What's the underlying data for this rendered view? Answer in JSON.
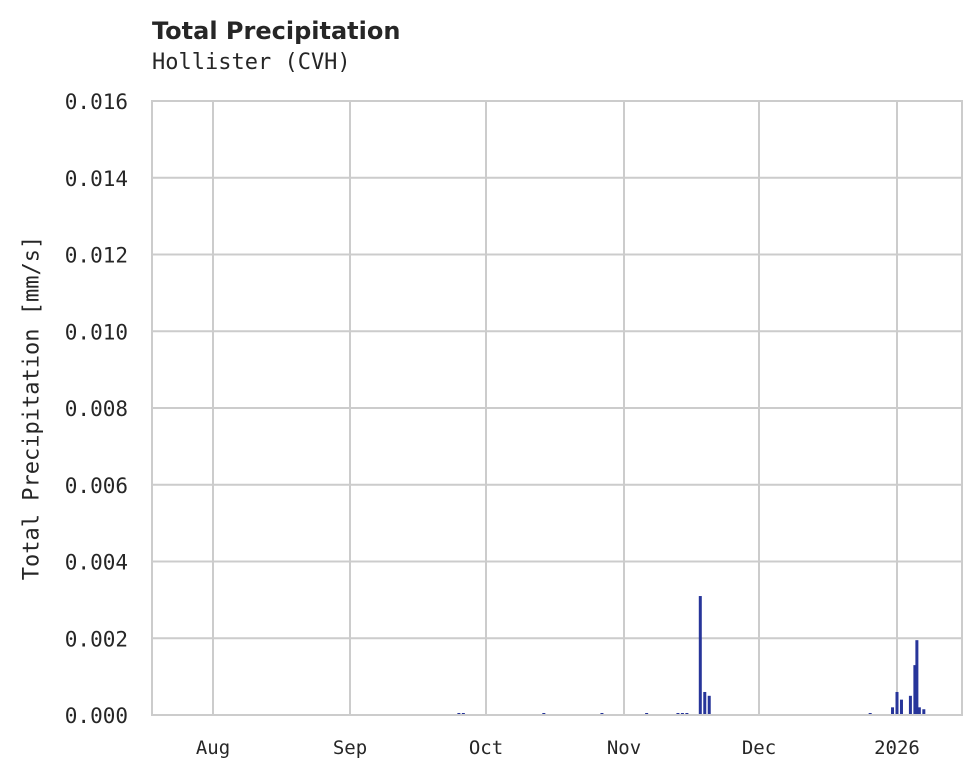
{
  "chart_data": {
    "type": "bar",
    "title": "Total Precipitation",
    "subtitle": "Hollister (CVH)",
    "xlabel": "",
    "ylabel": "Total Precipitation [mm/s]",
    "ylim": [
      0,
      0.016
    ],
    "yticks": [
      "0.000",
      "0.002",
      "0.004",
      "0.006",
      "0.008",
      "0.010",
      "0.012",
      "0.014",
      "0.016"
    ],
    "xticks": [
      "Aug",
      "Sep",
      "Oct",
      "Nov",
      "Dec",
      "2026"
    ],
    "grid": true,
    "series_color": "#27359a",
    "series": [
      {
        "name": "Total Precipitation",
        "points": [
          {
            "date": "2025-09-25",
            "value": 5e-05
          },
          {
            "date": "2025-09-26",
            "value": 5e-05
          },
          {
            "date": "2025-10-14",
            "value": 5e-05
          },
          {
            "date": "2025-10-27",
            "value": 4e-05
          },
          {
            "date": "2025-11-06",
            "value": 4e-05
          },
          {
            "date": "2025-11-13",
            "value": 5e-05
          },
          {
            "date": "2025-11-14",
            "value": 5e-05
          },
          {
            "date": "2025-11-15",
            "value": 5e-05
          },
          {
            "date": "2025-11-18",
            "value": 0.0031
          },
          {
            "date": "2025-11-19",
            "value": 0.0006
          },
          {
            "date": "2025-11-20",
            "value": 0.0005
          },
          {
            "date": "2025-12-26",
            "value": 5e-05
          },
          {
            "date": "2025-12-31",
            "value": 0.0002
          },
          {
            "date": "2026-01-01",
            "value": 0.0006
          },
          {
            "date": "2026-01-02",
            "value": 0.0004
          },
          {
            "date": "2026-01-04",
            "value": 0.0005
          },
          {
            "date": "2026-01-05",
            "value": 0.0013
          },
          {
            "date": "2026-01-05b",
            "value": 0.00195
          },
          {
            "date": "2026-01-06",
            "value": 0.0002
          },
          {
            "date": "2026-01-07",
            "value": 0.00015
          }
        ]
      }
    ]
  }
}
